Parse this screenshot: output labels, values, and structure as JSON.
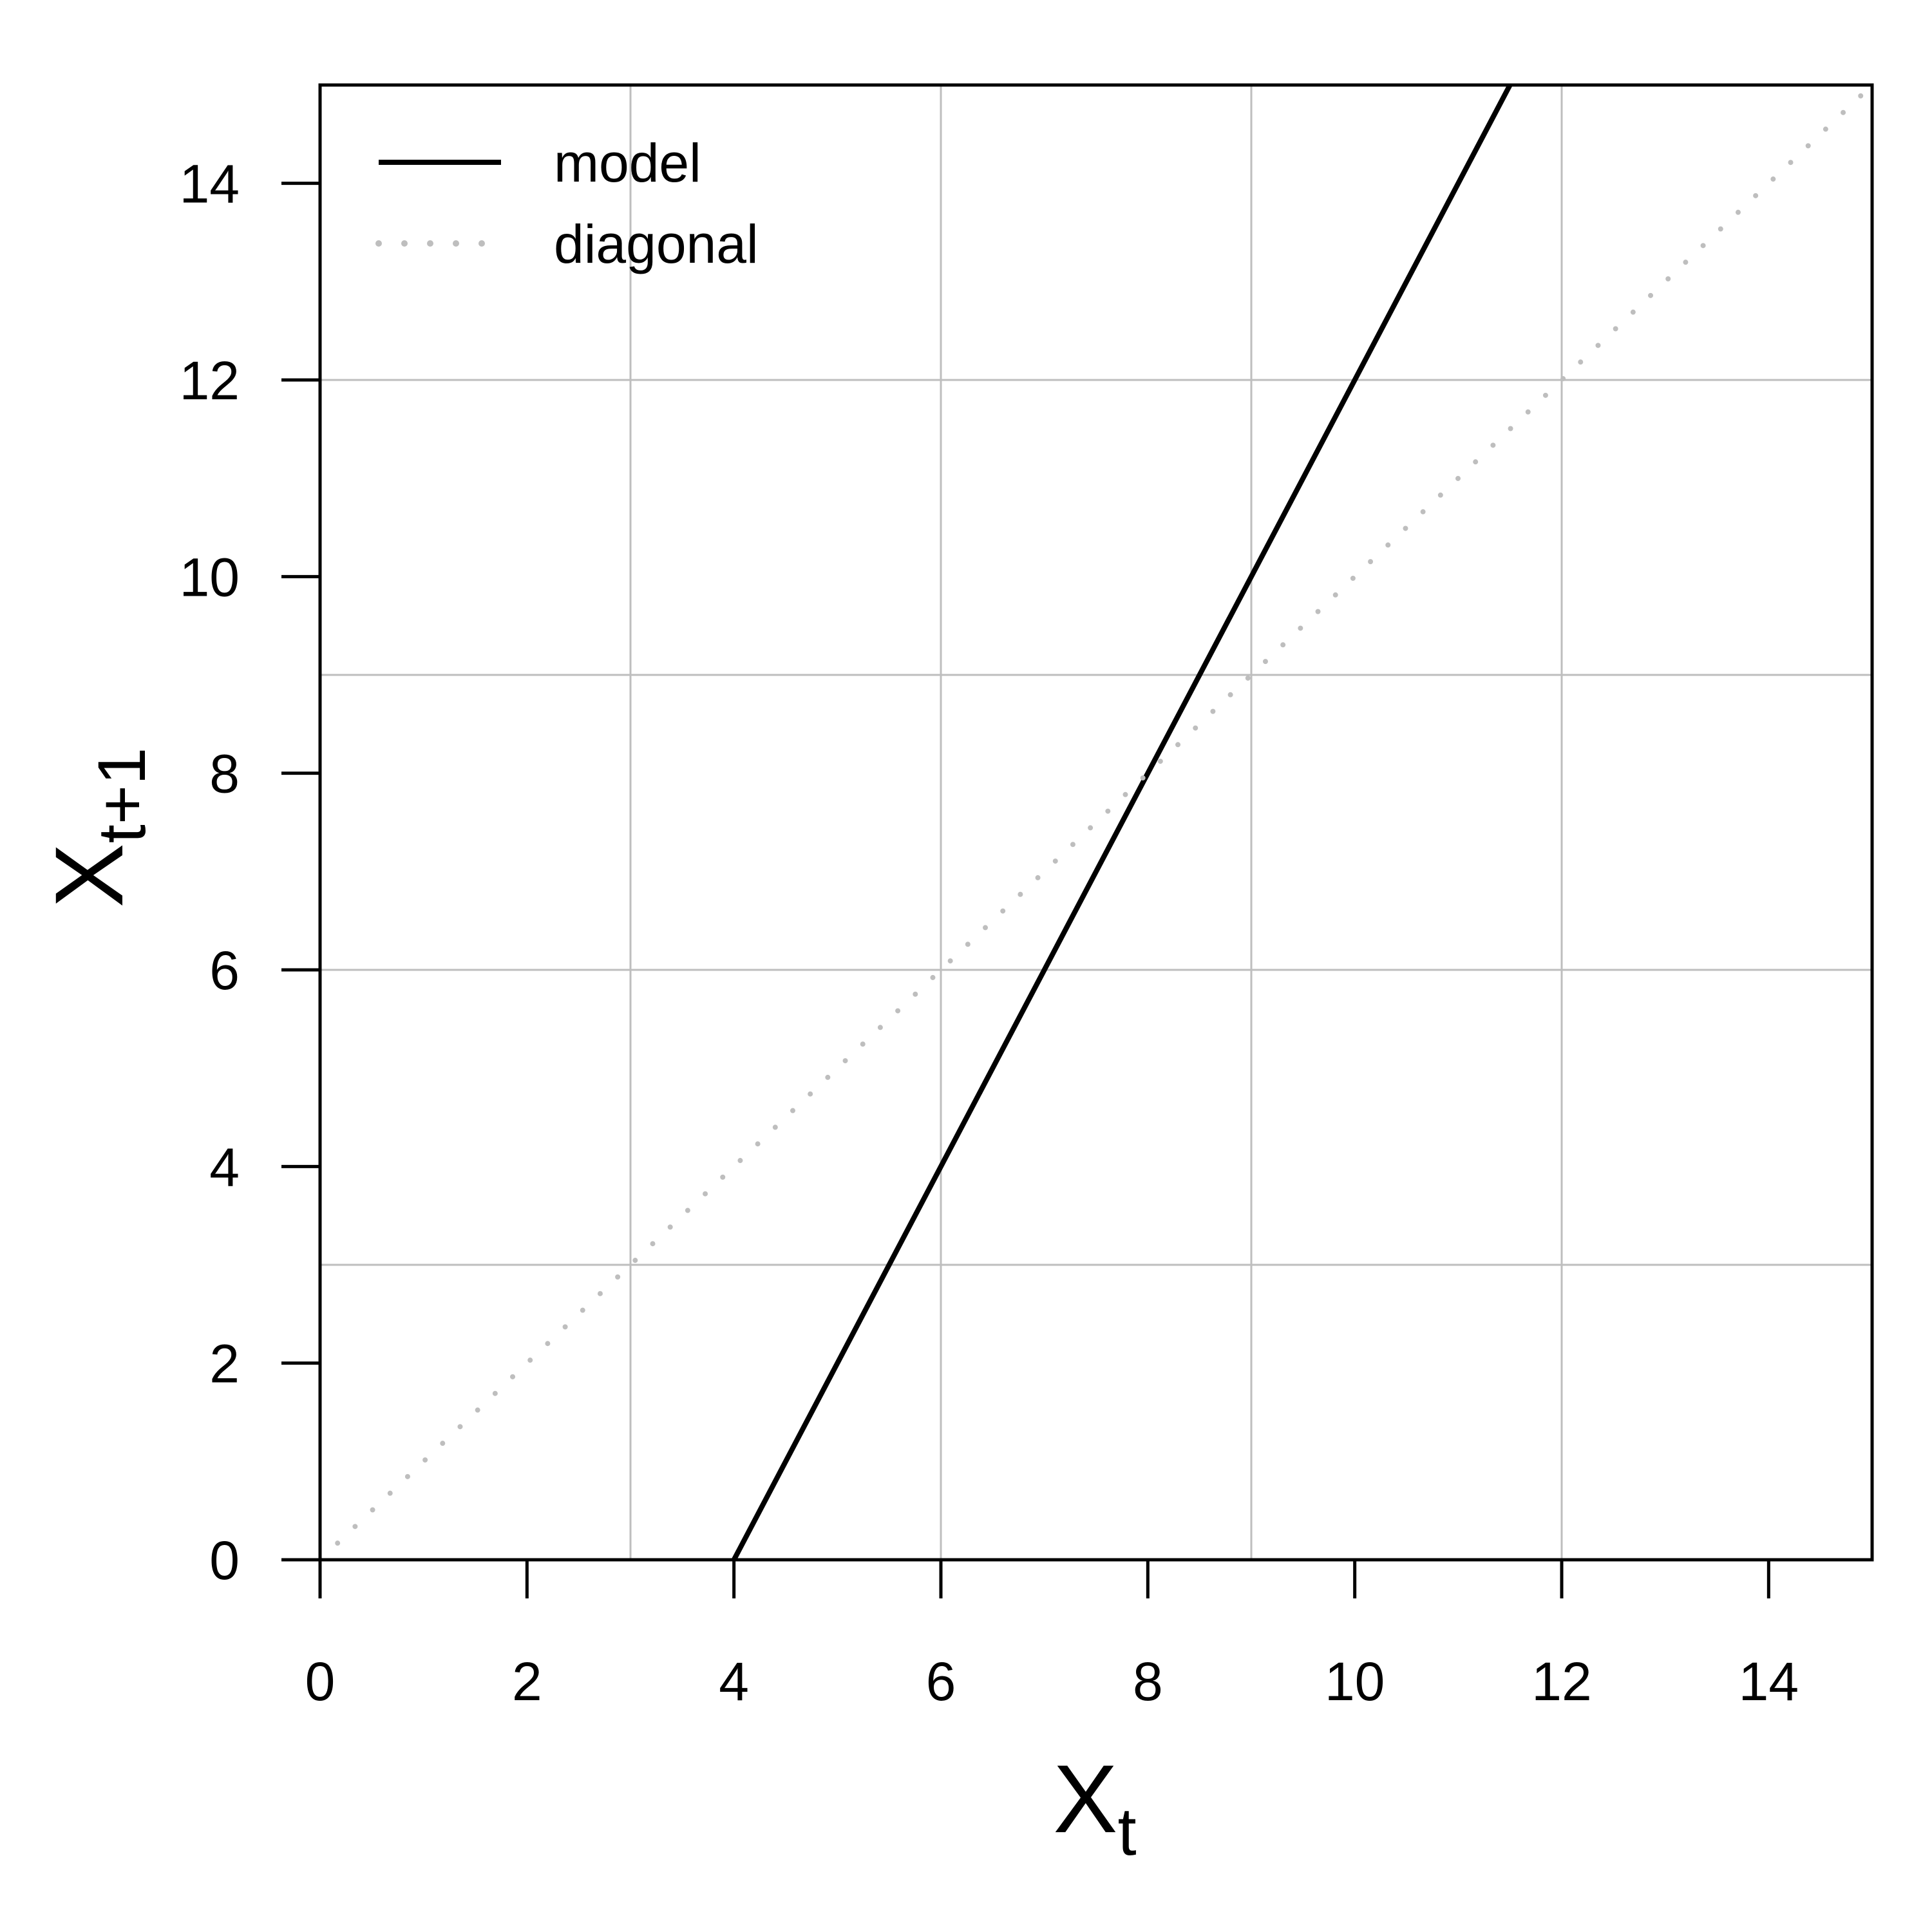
{
  "chart_data": {
    "type": "line",
    "xlabel": {
      "base": "X",
      "sub": "t"
    },
    "ylabel": {
      "base": "X",
      "sub": "t+1"
    },
    "xlim": [
      0,
      15
    ],
    "ylim": [
      0,
      15
    ],
    "xticks": [
      0,
      2,
      4,
      6,
      8,
      10,
      12,
      14
    ],
    "yticks": [
      0,
      2,
      4,
      6,
      8,
      10,
      12,
      14
    ],
    "grid": {
      "x": [
        3,
        6,
        9,
        12
      ],
      "y": [
        3,
        6,
        9,
        12
      ],
      "color": "#bebebe"
    },
    "legend": {
      "placement": "top-left"
    },
    "series": [
      {
        "name": "model",
        "style": "solid",
        "color": "#000000",
        "x": [
          4,
          11.5
        ],
        "y": [
          0,
          15
        ]
      },
      {
        "name": "diagonal",
        "style": "dotted",
        "color": "#bebebe",
        "x": [
          0,
          15
        ],
        "y": [
          0,
          15
        ]
      }
    ]
  }
}
